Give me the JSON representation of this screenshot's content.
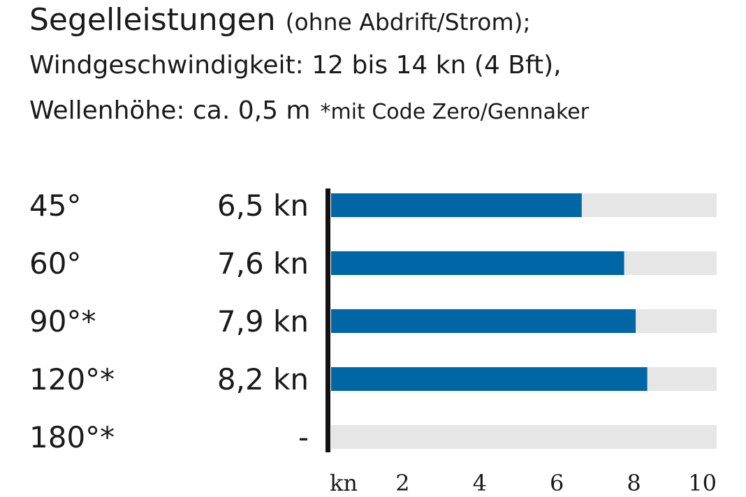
{
  "title": {
    "main": "Segelleistungen",
    "sub": "(ohne Abdrift/Strom);",
    "line2": "Windgeschwindigkeit: 12 bis 14 kn (4 Bft),",
    "line3": "Wellenhöhe: ca. 0,5 m",
    "footnote": "*mit Code Zero/Gennaker"
  },
  "chart_data": {
    "type": "bar",
    "orientation": "horizontal",
    "categories": [
      "45°",
      "60°",
      "90°*",
      "120°*",
      "180°*"
    ],
    "values": [
      6.5,
      7.6,
      7.9,
      8.2,
      null
    ],
    "value_labels": [
      "6,5 kn",
      "7,6 kn",
      "7,9 kn",
      "8,2 kn",
      "-"
    ],
    "xlim": [
      0,
      10
    ],
    "xticks": [
      2,
      4,
      6,
      8,
      10
    ],
    "xlabel": "kn",
    "bar_color": "#0066a6",
    "track_color": "#e6e6e6",
    "grid": false,
    "legend": "none"
  }
}
